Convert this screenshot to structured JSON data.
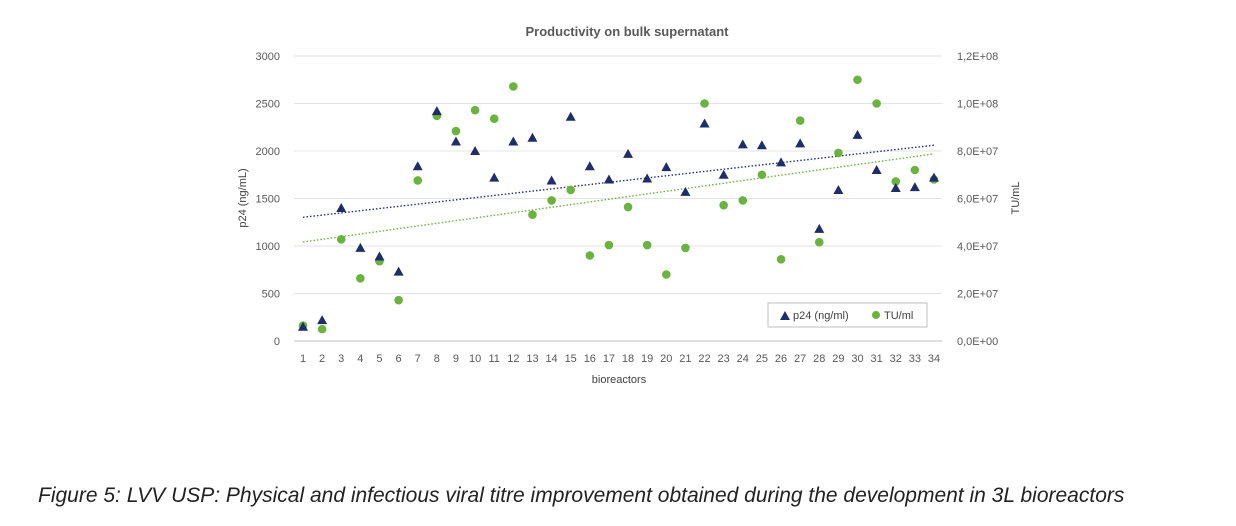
{
  "chart_data": {
    "type": "scatter",
    "title": "Productivity on bulk supernatant",
    "xlabel": "bioreactors",
    "ylabel": "p24 (ng/mL)",
    "y2label": "TU/mL",
    "categories": [
      "1",
      "2",
      "3",
      "4",
      "5",
      "6",
      "7",
      "8",
      "9",
      "10",
      "11",
      "12",
      "13",
      "14",
      "15",
      "16",
      "17",
      "18",
      "19",
      "20",
      "21",
      "22",
      "23",
      "24",
      "25",
      "26",
      "27",
      "28",
      "29",
      "30",
      "31",
      "32",
      "33",
      "34"
    ],
    "ylim": [
      0,
      3000
    ],
    "y_ticks": [
      "0",
      "500",
      "1000",
      "1500",
      "2000",
      "2500",
      "3000"
    ],
    "y2lim": [
      0,
      120000000
    ],
    "y2_ticks": [
      "0,0E+00",
      "2,0E+07",
      "4,0E+07",
      "6,0E+07",
      "8,0E+07",
      "1,0E+08",
      "1,2E+08"
    ],
    "legend_position": "bottom-right",
    "series": [
      {
        "name": "p24 (ng/ml)",
        "axis": "left",
        "marker": "triangle",
        "color": "#1f2d6b",
        "trend_color": "#1f2d8b",
        "values": [
          150,
          220,
          1400,
          980,
          890,
          730,
          1840,
          2420,
          2100,
          2000,
          1720,
          2100,
          2140,
          1690,
          2360,
          1840,
          1700,
          1970,
          1710,
          1830,
          1570,
          2290,
          1750,
          2070,
          2060,
          1880,
          2080,
          1180,
          1590,
          2170,
          1800,
          1610,
          1620,
          1720
        ]
      },
      {
        "name": "TU/ml",
        "axis": "right",
        "marker": "circle",
        "color": "#6ab33e",
        "trend_color": "#6ab33e",
        "values": [
          6500000,
          5000000,
          42800000,
          26400000,
          33600000,
          17200000,
          67600000,
          94800000,
          88400000,
          97200000,
          93600000,
          107200000,
          53200000,
          59200000,
          63600000,
          36000000,
          40400000,
          56400000,
          40400000,
          28000000,
          39200000,
          100000000,
          57200000,
          59200000,
          70000000,
          34400000,
          92800000,
          41600000,
          79200000,
          110000000,
          100000000,
          67200000,
          72000000,
          68000000
        ]
      }
    ]
  },
  "caption": "Figure 5:  LVV USP: Physical and infectious viral titre improvement obtained during the development in 3L bioreactors"
}
